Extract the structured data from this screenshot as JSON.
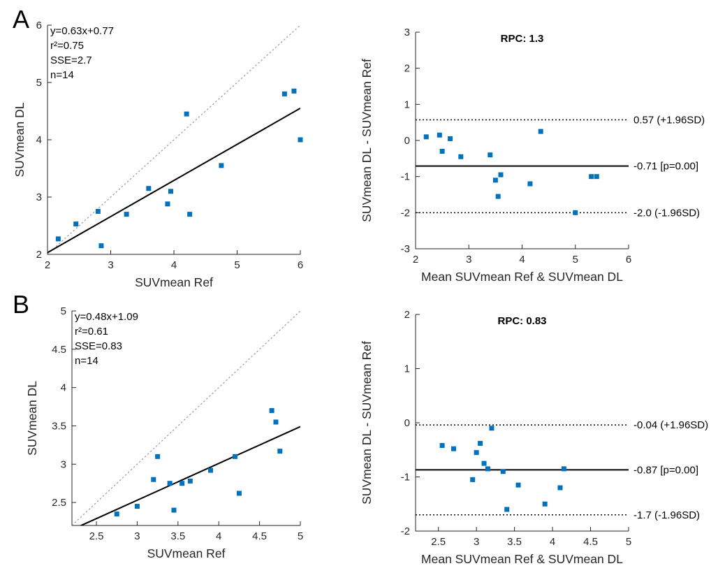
{
  "panels": [
    {
      "label": "A"
    },
    {
      "label": "B"
    }
  ],
  "style": {
    "marker_color": "#0072BD",
    "regression_color": "#000000",
    "identity_color": "#999999",
    "text_color": "#262626"
  },
  "chart_data": [
    {
      "id": "a_scatter",
      "type": "scatter",
      "title": "",
      "xlabel": "SUVmean Ref",
      "ylabel": "SUVmean DL",
      "xlim": [
        2,
        6
      ],
      "ylim": [
        2,
        6
      ],
      "xticks": [
        2,
        3,
        4,
        5,
        6
      ],
      "xtick_labels": [
        "2",
        "3",
        "4",
        "5",
        "6"
      ],
      "yticks": [
        2,
        3,
        4,
        5,
        6
      ],
      "ytick_labels": [
        "2",
        "3",
        "4",
        "5",
        "6"
      ],
      "grid": false,
      "annotation_lines": [
        "y=0.63x+0.77",
        "r²=0.75",
        "SSE=2.7",
        "n=14"
      ],
      "identity_line": true,
      "fit_line": {
        "slope": 0.63,
        "intercept": 0.77
      },
      "marker_color": "#0072BD",
      "points": [
        [
          2.17,
          2.27
        ],
        [
          2.45,
          2.53
        ],
        [
          2.8,
          2.75
        ],
        [
          2.85,
          2.15
        ],
        [
          3.25,
          2.7
        ],
        [
          3.6,
          3.15
        ],
        [
          3.9,
          2.88
        ],
        [
          3.95,
          3.1
        ],
        [
          4.2,
          4.45
        ],
        [
          4.25,
          2.7
        ],
        [
          4.75,
          3.55
        ],
        [
          5.75,
          4.8
        ],
        [
          5.9,
          4.85
        ],
        [
          6.0,
          4.0
        ]
      ]
    },
    {
      "id": "a_bland",
      "type": "scatter",
      "title": "RPC: 1.3",
      "xlabel": "Mean SUVmean Ref & SUVmean DL",
      "ylabel": "SUVmean DL - SUVmean Ref",
      "xlim": [
        2,
        6
      ],
      "ylim": [
        -3,
        3
      ],
      "xticks": [
        2,
        3,
        4,
        5,
        6
      ],
      "xtick_labels": [
        "2",
        "3",
        "4",
        "5",
        "6"
      ],
      "yticks": [
        -3,
        -2,
        -1,
        0,
        1,
        2,
        3
      ],
      "ytick_labels": [
        "-3",
        "-2",
        "-1",
        "0",
        "1",
        "2",
        "3"
      ],
      "grid": false,
      "hlines": [
        {
          "y": 0.57,
          "style": "dotted",
          "label": "0.57 (+1.96SD)"
        },
        {
          "y": -0.71,
          "style": "solid",
          "label": "-0.71 [p=0.00]"
        },
        {
          "y": -2.0,
          "style": "dotted",
          "label": "-2.0 (-1.96SD)"
        }
      ],
      "marker_color": "#0072BD",
      "points": [
        [
          2.2,
          0.1
        ],
        [
          2.45,
          0.15
        ],
        [
          2.5,
          -0.3
        ],
        [
          2.65,
          0.05
        ],
        [
          2.85,
          -0.45
        ],
        [
          3.4,
          -0.4
        ],
        [
          3.5,
          -1.1
        ],
        [
          3.55,
          -1.55
        ],
        [
          3.6,
          -0.95
        ],
        [
          4.15,
          -1.2
        ],
        [
          4.35,
          0.25
        ],
        [
          5.0,
          -2.0
        ],
        [
          5.3,
          -1.0
        ],
        [
          5.4,
          -1.0
        ]
      ]
    },
    {
      "id": "b_scatter",
      "type": "scatter",
      "title": "",
      "xlabel": "SUVmean Ref",
      "ylabel": "SUVmean DL",
      "xlim": [
        2.2,
        5
      ],
      "ylim": [
        2.2,
        5
      ],
      "xticks": [
        2.5,
        3,
        3.5,
        4,
        4.5,
        5
      ],
      "xtick_labels": [
        "2.5",
        "3",
        "3.5",
        "4",
        "4.5",
        "5"
      ],
      "yticks": [
        2.5,
        3,
        3.5,
        4,
        4.5,
        5
      ],
      "ytick_labels": [
        "2.5",
        "3",
        "3.5",
        "4",
        "4.5",
        "5"
      ],
      "grid": false,
      "annotation_lines": [
        "y=0.48x+1.09",
        "r²=0.61",
        "SSE=0.83",
        "n=14"
      ],
      "identity_line": true,
      "fit_line": {
        "slope": 0.48,
        "intercept": 1.09
      },
      "marker_color": "#0072BD",
      "points": [
        [
          2.75,
          2.35
        ],
        [
          3.0,
          2.45
        ],
        [
          3.2,
          2.8
        ],
        [
          3.25,
          3.1
        ],
        [
          3.4,
          2.75
        ],
        [
          3.45,
          2.4
        ],
        [
          3.55,
          2.75
        ],
        [
          3.65,
          2.78
        ],
        [
          3.9,
          2.92
        ],
        [
          4.2,
          3.1
        ],
        [
          4.25,
          2.62
        ],
        [
          4.65,
          3.7
        ],
        [
          4.7,
          3.55
        ],
        [
          4.75,
          3.17
        ]
      ]
    },
    {
      "id": "b_bland",
      "type": "scatter",
      "title": "RPC: 0.83",
      "xlabel": "Mean SUVmean Ref & SUVmean DL",
      "ylabel": "SUVmean DL - SUVmean Ref",
      "xlim": [
        2.2,
        5
      ],
      "ylim": [
        -2,
        2
      ],
      "xticks": [
        2.5,
        3,
        3.5,
        4,
        4.5,
        5
      ],
      "xtick_labels": [
        "2.5",
        "3",
        "3.5",
        "4",
        "4.5",
        "5"
      ],
      "yticks": [
        -2,
        -1,
        0,
        1,
        2
      ],
      "ytick_labels": [
        "-2",
        "-1",
        "0",
        "1",
        "2"
      ],
      "grid": false,
      "hlines": [
        {
          "y": -0.04,
          "style": "dotted",
          "label": "-0.04 (+1.96SD)"
        },
        {
          "y": -0.87,
          "style": "solid",
          "label": "-0.87 [p=0.00]"
        },
        {
          "y": -1.7,
          "style": "dotted",
          "label": "-1.7 (-1.96SD)"
        }
      ],
      "marker_color": "#0072BD",
      "points": [
        [
          2.55,
          -0.42
        ],
        [
          2.7,
          -0.48
        ],
        [
          2.95,
          -1.05
        ],
        [
          3.0,
          -0.55
        ],
        [
          3.05,
          -0.38
        ],
        [
          3.1,
          -0.75
        ],
        [
          3.15,
          -0.85
        ],
        [
          3.2,
          -0.1
        ],
        [
          3.35,
          -0.9
        ],
        [
          3.4,
          -1.6
        ],
        [
          3.55,
          -1.15
        ],
        [
          3.9,
          -1.5
        ],
        [
          4.1,
          -1.2
        ],
        [
          4.15,
          -0.85
        ]
      ]
    }
  ]
}
